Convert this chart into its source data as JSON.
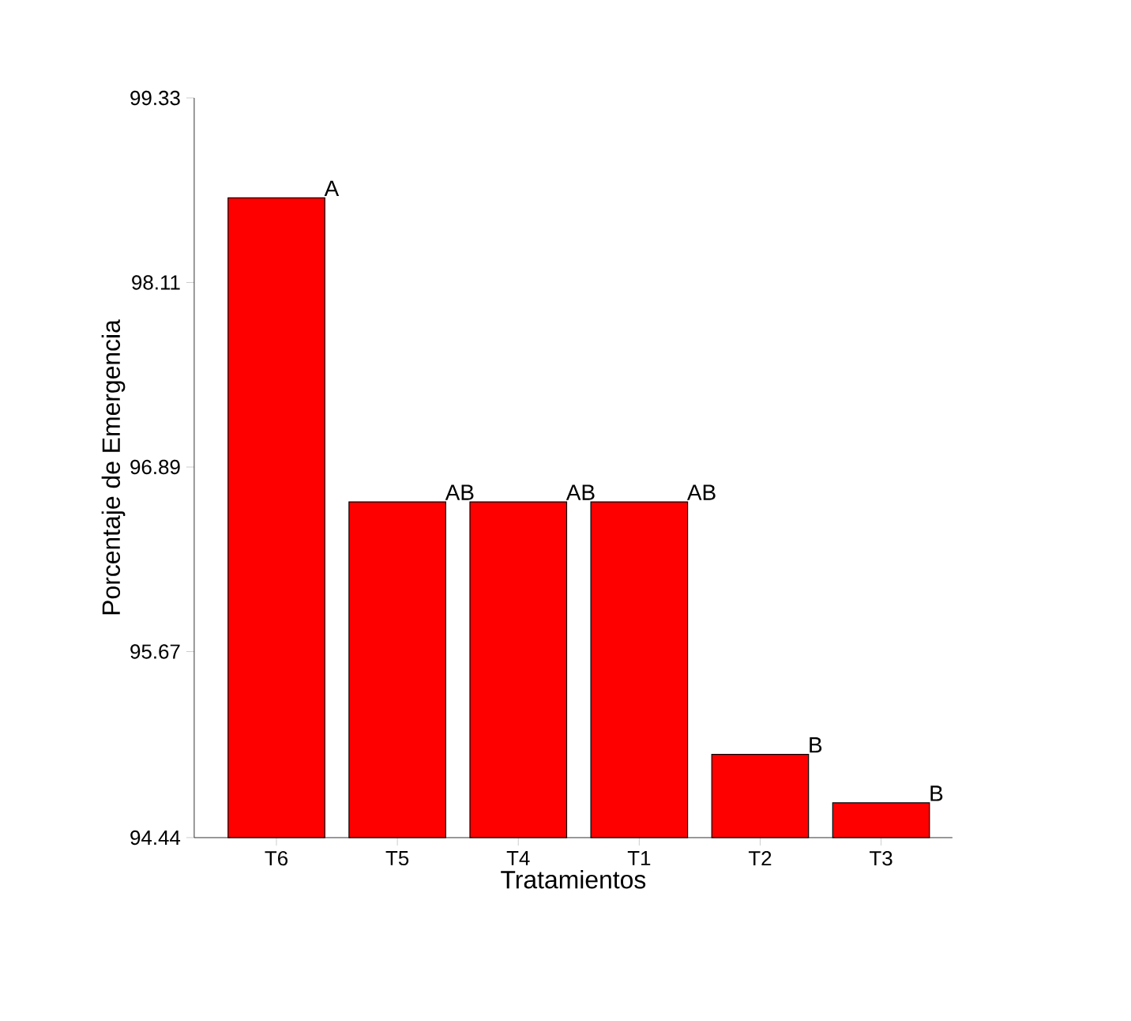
{
  "chart_data": {
    "type": "bar",
    "xlabel": "Tratamientos",
    "ylabel": "Porcentaje de Emergencia",
    "categories": [
      "T6",
      "T5",
      "T4",
      "T1",
      "T2",
      "T3"
    ],
    "values": [
      98.67,
      96.66,
      96.66,
      96.66,
      94.99,
      94.67
    ],
    "color": "#ff0000",
    "ylim": [
      94.44,
      99.33
    ],
    "yticks": [
      94.44,
      95.67,
      96.89,
      98.11,
      99.33
    ],
    "grid": false,
    "annotations": [
      {
        "text": "A",
        "x": "T6",
        "y": 98.67
      },
      {
        "text": "AB",
        "x": "T5",
        "y": 96.66
      },
      {
        "text": "AB",
        "x": "T4",
        "y": 96.66
      },
      {
        "text": "AB",
        "x": "T1",
        "y": 96.66
      },
      {
        "text": "B",
        "x": "T2",
        "y": 94.99
      },
      {
        "text": "B",
        "x": "T3",
        "y": 94.67
      }
    ]
  }
}
